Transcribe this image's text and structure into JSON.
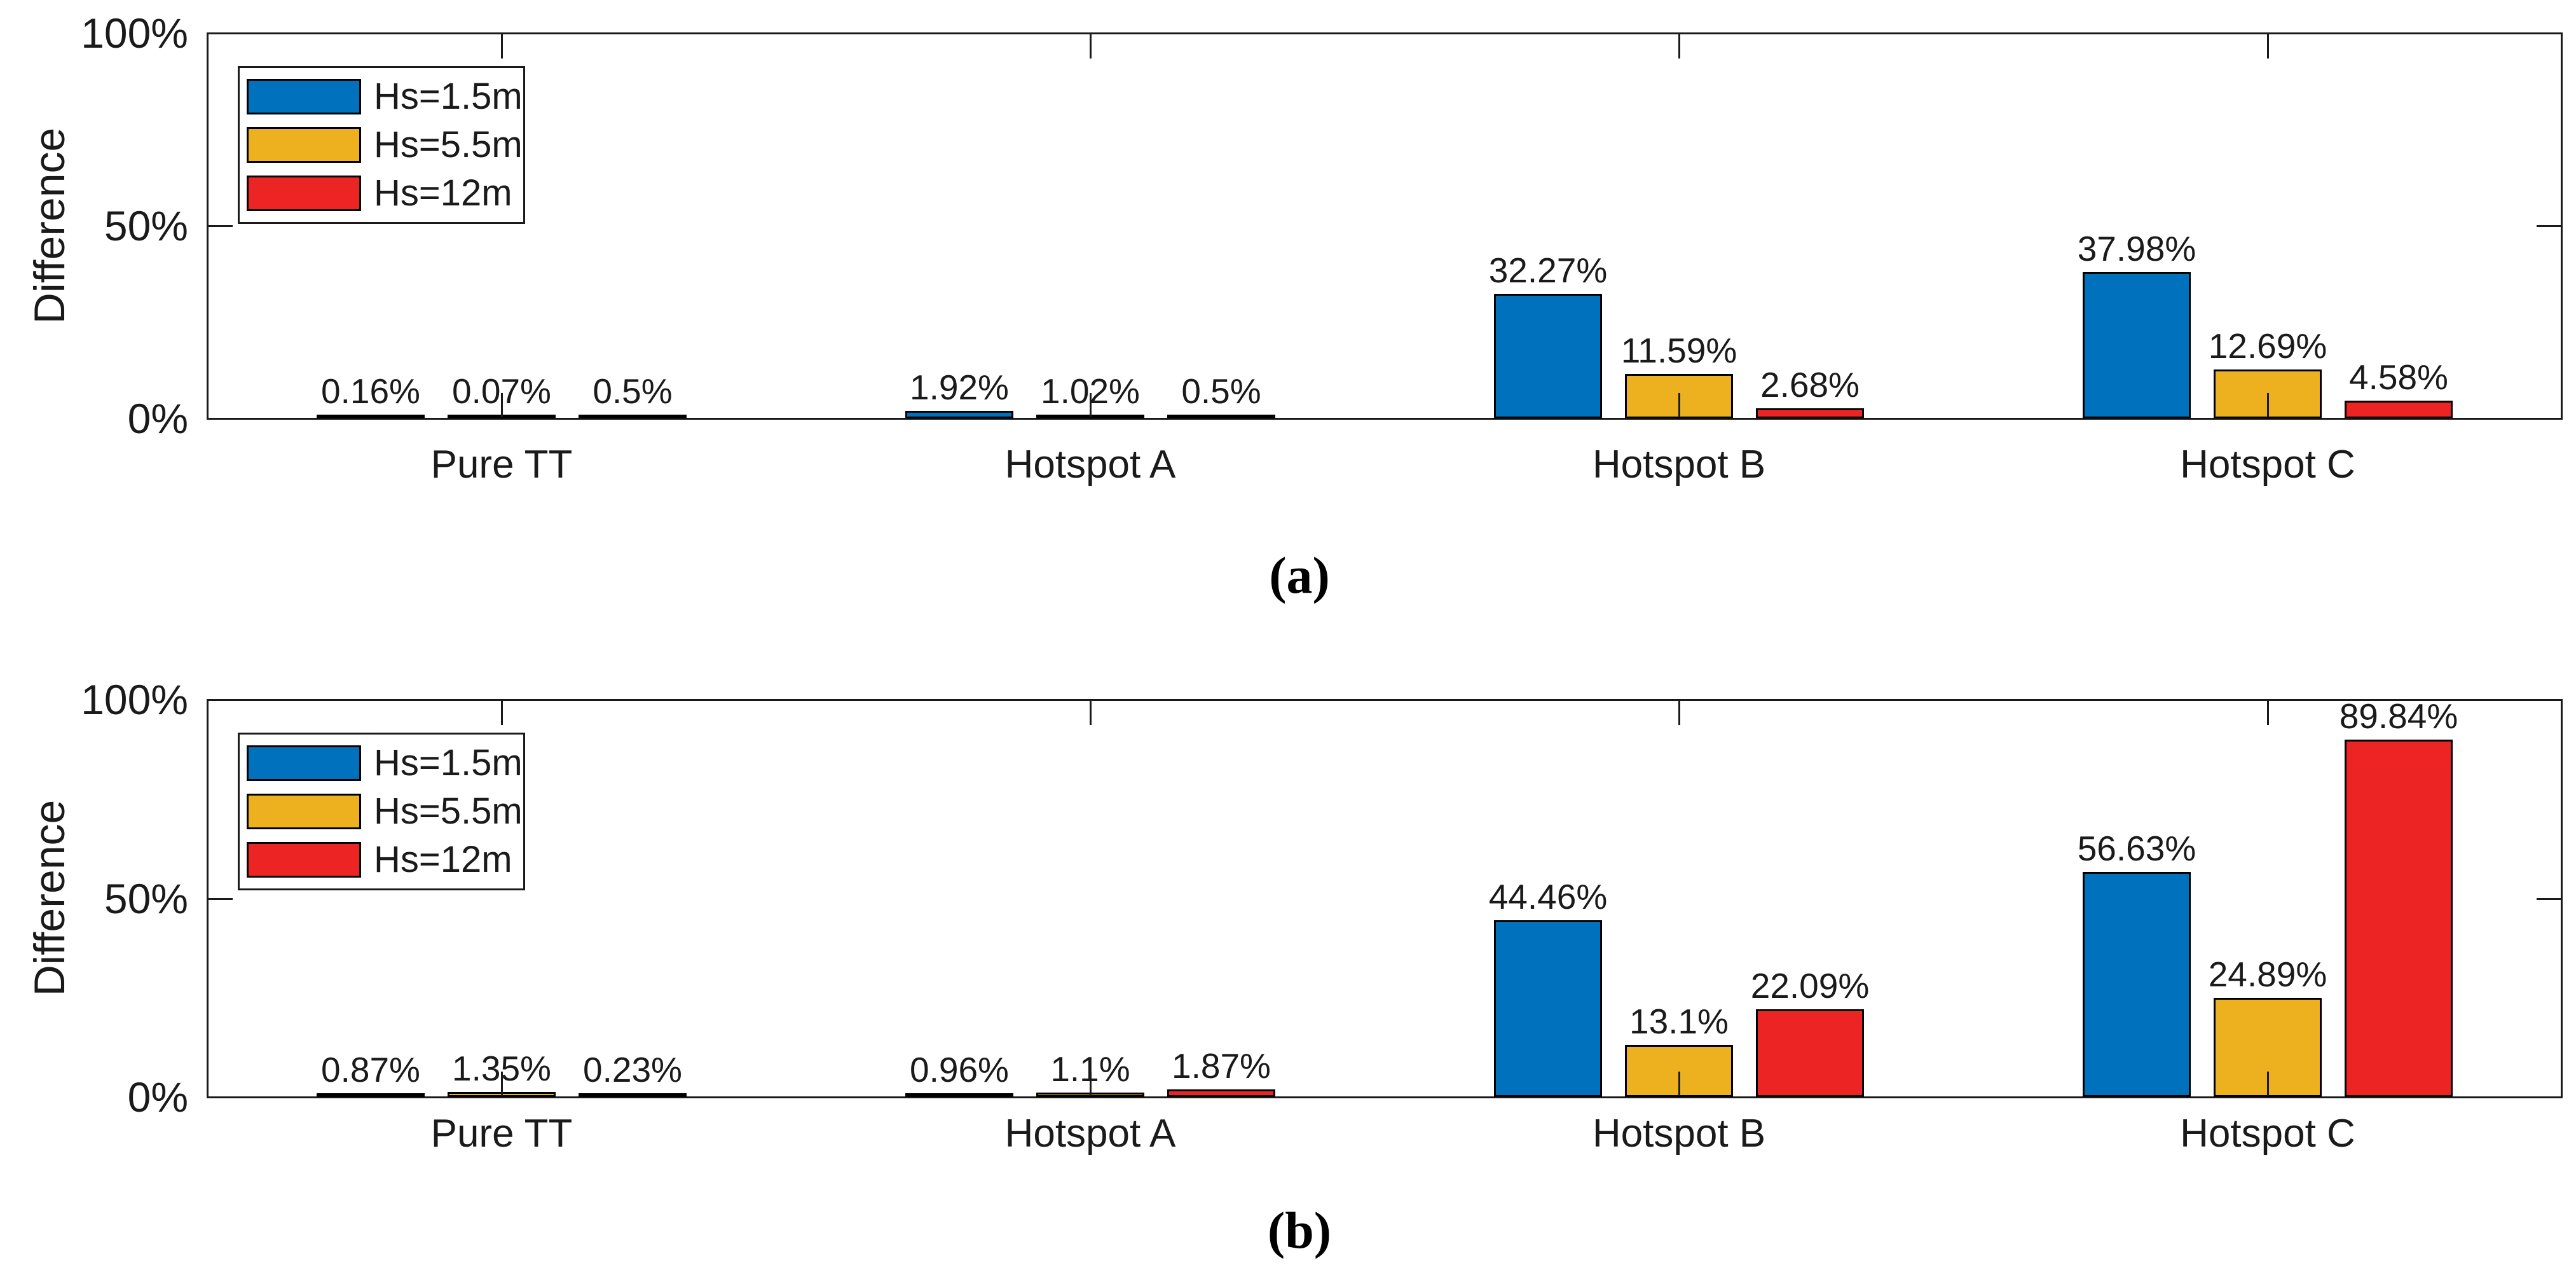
{
  "figure": {
    "background": "#ffffff",
    "axis_color": "#1a1a1a",
    "bar_edge_color": "#000000"
  },
  "chart_data": [
    {
      "type": "bar",
      "caption": "(a)",
      "ylabel": "Difference",
      "ylim": [
        0,
        100
      ],
      "ytick_values": [
        0,
        50,
        100
      ],
      "ytick_labels": [
        "0%",
        "50%",
        "100%"
      ],
      "grid": false,
      "legend_position": "top-left",
      "categories": [
        "Pure TT",
        "Hotspot A",
        "Hotspot B",
        "Hotspot C"
      ],
      "series": [
        {
          "name": "Hs=1.5m",
          "color": "#0072BD",
          "values": [
            0.16,
            1.92,
            32.27,
            37.98
          ],
          "value_labels": [
            "0.16%",
            "1.92%",
            "32.27%",
            "37.98%"
          ]
        },
        {
          "name": "Hs=5.5m",
          "color": "#EDB120",
          "values": [
            0.07,
            1.02,
            11.59,
            12.69
          ],
          "value_labels": [
            "0.07%",
            "1.02%",
            "11.59%",
            "12.69%"
          ]
        },
        {
          "name": "Hs=12m",
          "color": "#ED2424",
          "values": [
            0.5,
            0.5,
            2.68,
            4.58
          ],
          "value_labels": [
            "0.5%",
            "0.5%",
            "2.68%",
            "4.58%"
          ]
        }
      ]
    },
    {
      "type": "bar",
      "caption": "(b)",
      "ylabel": "Difference",
      "ylim": [
        0,
        100
      ],
      "ytick_values": [
        0,
        50,
        100
      ],
      "ytick_labels": [
        "0%",
        "50%",
        "100%"
      ],
      "grid": false,
      "legend_position": "top-left",
      "categories": [
        "Pure TT",
        "Hotspot A",
        "Hotspot B",
        "Hotspot C"
      ],
      "series": [
        {
          "name": "Hs=1.5m",
          "color": "#0072BD",
          "values": [
            0.87,
            0.96,
            44.46,
            56.63
          ],
          "value_labels": [
            "0.87%",
            "0.96%",
            "44.46%",
            "56.63%"
          ]
        },
        {
          "name": "Hs=5.5m",
          "color": "#EDB120",
          "values": [
            1.35,
            1.1,
            13.1,
            24.89
          ],
          "value_labels": [
            "1.35%",
            "1.1%",
            "13.1%",
            "24.89%"
          ]
        },
        {
          "name": "Hs=12m",
          "color": "#ED2424",
          "values": [
            0.23,
            1.87,
            22.09,
            89.84
          ],
          "value_labels": [
            "0.23%",
            "1.87%",
            "22.09%",
            "89.84%"
          ]
        }
      ]
    }
  ]
}
